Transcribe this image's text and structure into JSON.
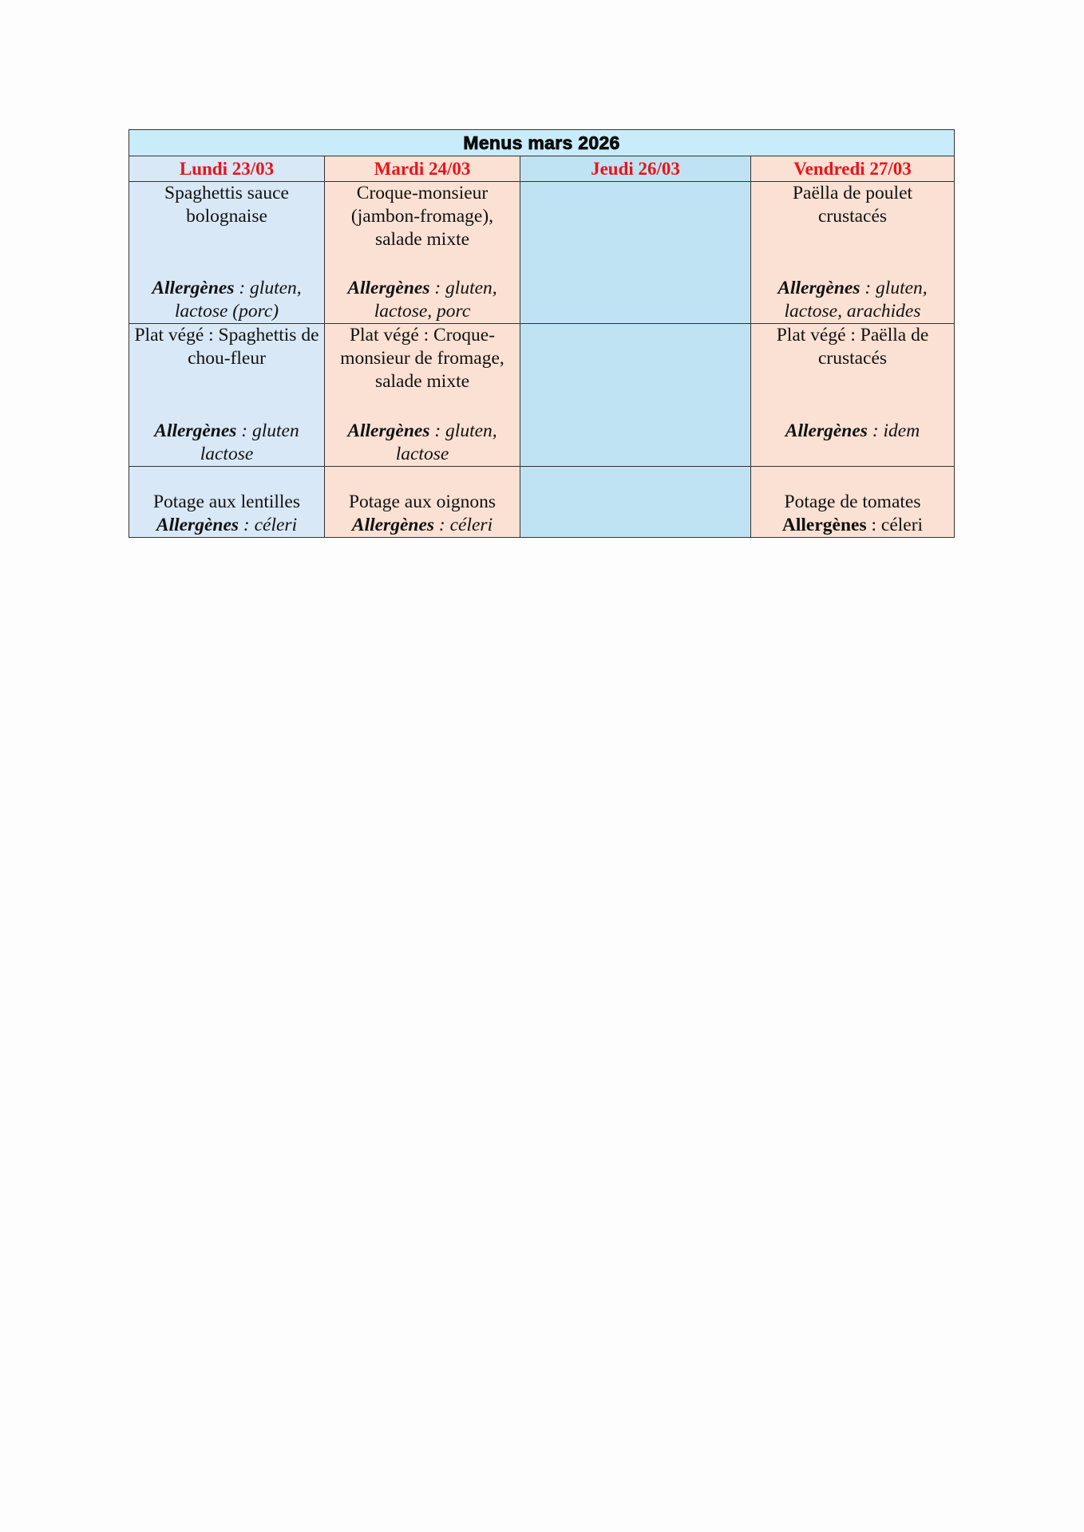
{
  "title": "Menus mars 2026",
  "days": [
    "Lundi 23/03",
    "Mardi 24/03",
    "Jeudi 26/03",
    "Vendredi 27/03"
  ],
  "allergen_label": "Allergènes",
  "plats": [
    {
      "dish": "Spaghettis sauce bolognaise",
      "allergens": " : gluten, lactose (porc)"
    },
    {
      "dish": "Croque-monsieur (jambon-fromage), salade mixte",
      "allergens": " : gluten, lactose, porc"
    },
    {
      "dish": "",
      "allergens": ""
    },
    {
      "dish": "Paëlla de poulet crustacés",
      "allergens": " : gluten, lactose, arachides"
    }
  ],
  "vege": [
    {
      "dish": "Plat végé : Spaghettis de chou-fleur",
      "allergens": " : gluten lactose"
    },
    {
      "dish": "Plat végé : Croque-monsieur de fromage, salade mixte",
      "allergens": " : gluten, lactose"
    },
    {
      "dish": "",
      "allergens": ""
    },
    {
      "dish": "Plat végé : Paëlla de crustacés",
      "allergens": " : idem"
    }
  ],
  "potages": [
    {
      "dish": "Potage aux lentilles",
      "allergens": " : céleri"
    },
    {
      "dish": "Potage aux oignons",
      "allergens": " : céleri"
    },
    {
      "dish": "",
      "allergens": ""
    },
    {
      "dish": "Potage de tomates",
      "allergens": " : céleri"
    }
  ],
  "colors": {
    "lundi_bg": "#d9e8f6",
    "mardi_bg": "#fae1d4",
    "jeudi_bg": "#c0e3f3",
    "vendredi_bg": "#fae1d4",
    "title_bg": "#c8ecfa",
    "day_text": "#e8141b"
  }
}
